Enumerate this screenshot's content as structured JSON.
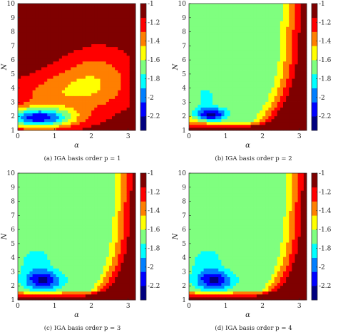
{
  "colormap": [
    "#00007f",
    "#0000ff",
    "#007fff",
    "#00ffff",
    "#7fff7f",
    "#ffff00",
    "#ff7f00",
    "#ff0000",
    "#7f0000"
  ],
  "chart_data": [
    {
      "type": "heatmap",
      "caption": "(a) IGA basis order p = 1",
      "xlabel": "α",
      "ylabel": "N",
      "xlim": [
        0,
        3.2
      ],
      "ylim": [
        1,
        10
      ],
      "clim": [
        -2.35,
        -1
      ],
      "xticks": [
        "0",
        "1",
        "2",
        "3"
      ],
      "yticks": [
        "1",
        "2",
        "3",
        "4",
        "5",
        "6",
        "7",
        "8",
        "9",
        "10"
      ],
      "colorbar_ticks": [
        "-1",
        "-1.2",
        "-1.4",
        "-1.6",
        "-1.8",
        "-2",
        "-2.2"
      ]
    },
    {
      "type": "heatmap",
      "caption": "(b) IGA basis order p = 2",
      "xlabel": "α",
      "ylabel": "N",
      "xlim": [
        0,
        3.2
      ],
      "ylim": [
        1,
        10
      ],
      "clim": [
        -2.35,
        -1
      ],
      "xticks": [
        "0",
        "1",
        "2",
        "3"
      ],
      "yticks": [
        "1",
        "2",
        "3",
        "4",
        "5",
        "6",
        "7",
        "8",
        "9",
        "10"
      ],
      "colorbar_ticks": [
        "-1",
        "-1.2",
        "-1.4",
        "-1.6",
        "-1.8",
        "-2",
        "-2.2"
      ]
    },
    {
      "type": "heatmap",
      "caption": "(c) IGA basis order p = 3",
      "xlabel": "α",
      "ylabel": "N",
      "xlim": [
        0,
        3.2
      ],
      "ylim": [
        1,
        10
      ],
      "clim": [
        -2.35,
        -1
      ],
      "xticks": [
        "0",
        "1",
        "2",
        "3"
      ],
      "yticks": [
        "1",
        "2",
        "3",
        "4",
        "5",
        "6",
        "7",
        "8",
        "9",
        "10"
      ],
      "colorbar_ticks": [
        "-1",
        "-1.2",
        "-1.4",
        "-1.6",
        "-1.8",
        "-2",
        "-2.2"
      ]
    },
    {
      "type": "heatmap",
      "caption": "(d) IGA basis order p = 4",
      "xlabel": "α",
      "ylabel": "N",
      "xlim": [
        0,
        3.2
      ],
      "ylim": [
        1,
        10
      ],
      "clim": [
        -2.35,
        -1
      ],
      "xticks": [
        "0",
        "1",
        "2",
        "3"
      ],
      "yticks": [
        "1",
        "2",
        "3",
        "4",
        "5",
        "6",
        "7",
        "8",
        "9",
        "10"
      ],
      "colorbar_ticks": [
        "-1",
        "-1.2",
        "-1.4",
        "-1.6",
        "-1.8",
        "-2",
        "-2.2"
      ]
    }
  ]
}
